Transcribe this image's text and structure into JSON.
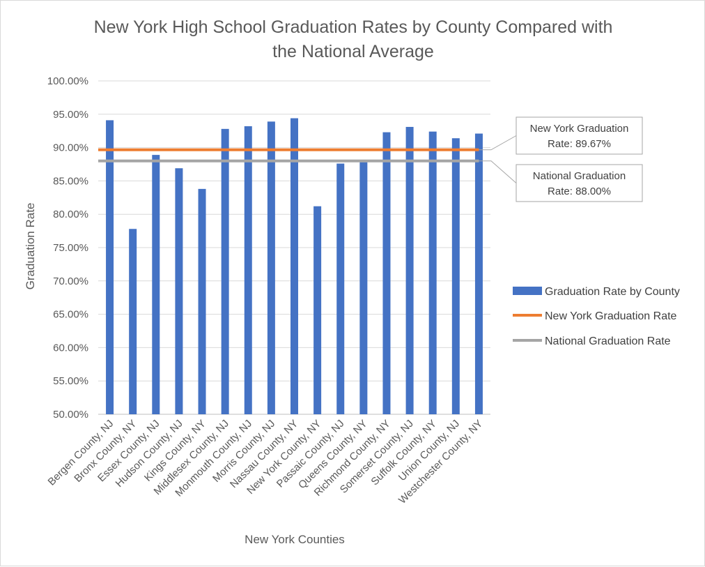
{
  "chart_data": {
    "type": "bar",
    "title_lines": [
      "New York High School Graduation Rates by County Compared with",
      "the National Average"
    ],
    "xlabel": "New York Counties",
    "ylabel": "Graduation Rate",
    "ylim": [
      50,
      100
    ],
    "yticks": [
      50,
      55,
      60,
      65,
      70,
      75,
      80,
      85,
      90,
      95,
      100
    ],
    "ytick_labels": [
      "50.00%",
      "55.00%",
      "60.00%",
      "65.00%",
      "70.00%",
      "75.00%",
      "80.00%",
      "85.00%",
      "90.00%",
      "95.00%",
      "100.00%"
    ],
    "grid": true,
    "legend_position": "right",
    "categories": [
      "Bergen County, NJ",
      "Bronx County, NY",
      "Essex County, NJ",
      "Hudson County, NJ",
      "Kings County, NY",
      "Middlesex County, NJ",
      "Monmouth County, NJ",
      "Morris County, NJ",
      "Nassau County, NY",
      "New York County, NY",
      "Passaic County, NJ",
      "Queens County, NY",
      "Richmond County, NY",
      "Somerset County, NJ",
      "Suffolk County, NY",
      "Union County, NJ",
      "Westchester County, NY"
    ],
    "series": [
      {
        "name": "Graduation Rate by County",
        "kind": "bar",
        "color": "#4472c4",
        "values": [
          94.1,
          77.8,
          88.9,
          86.9,
          83.8,
          92.8,
          93.2,
          93.9,
          94.4,
          81.2,
          87.6,
          87.8,
          92.3,
          93.1,
          92.4,
          91.4,
          92.1
        ]
      },
      {
        "name": "New York Graduation Rate",
        "kind": "line",
        "color": "#ed7d31",
        "value": 89.67
      },
      {
        "name": "National Graduation Rate",
        "kind": "line",
        "color": "#a5a5a5",
        "value": 88.0
      }
    ],
    "annotations": [
      {
        "target_series": 1,
        "lines": [
          "New York Graduation",
          "Rate: 89.67%"
        ]
      },
      {
        "target_series": 2,
        "lines": [
          "National Graduation",
          "Rate: 88.00%"
        ]
      }
    ]
  }
}
